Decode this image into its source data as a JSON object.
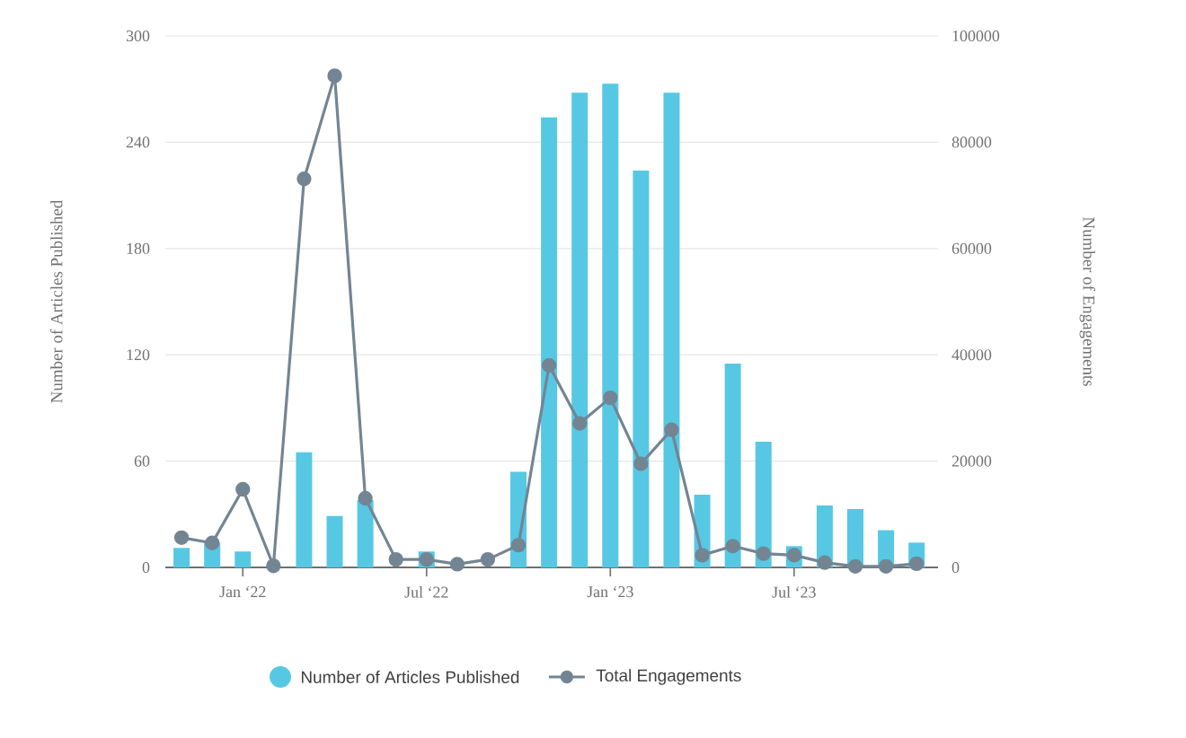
{
  "chart_data": {
    "type": "bar",
    "categories": [
      null,
      null,
      "Jan ‘22",
      null,
      null,
      null,
      null,
      null,
      "Jul ‘22",
      null,
      null,
      null,
      null,
      null,
      "Jan ‘23",
      null,
      null,
      null,
      null,
      null,
      "Jul ‘23",
      null,
      null,
      null,
      null
    ],
    "ylabel": "Number of Articles Published",
    "y2label": "Number of Engagements",
    "ylim": [
      0,
      300
    ],
    "yticks": [
      0,
      60,
      120,
      180,
      240,
      300
    ],
    "y2lim": [
      0,
      100000
    ],
    "y2ticks": [
      0,
      20000,
      40000,
      60000,
      80000,
      100000
    ],
    "grid": "y",
    "legend": "bottom",
    "series": [
      {
        "name": "Number of Articles Published",
        "color": "#56c8e4",
        "values": [
          11,
          14,
          9,
          0,
          65,
          29,
          38,
          null,
          9,
          0,
          0,
          54,
          254,
          268,
          273,
          224,
          268,
          41,
          115,
          71,
          12,
          35,
          33,
          21,
          14
        ]
      },
      {
        "name": "Total Engagements",
        "type": "line",
        "axis": "y2",
        "color": "#738593",
        "marker": "circle",
        "values": [
          5600,
          4600,
          14700,
          300,
          73100,
          92500,
          13000,
          1500,
          1500,
          600,
          1500,
          4200,
          38000,
          27100,
          31900,
          19500,
          25900,
          2300,
          4000,
          2600,
          2300,
          900,
          200,
          200,
          700
        ]
      }
    ]
  }
}
